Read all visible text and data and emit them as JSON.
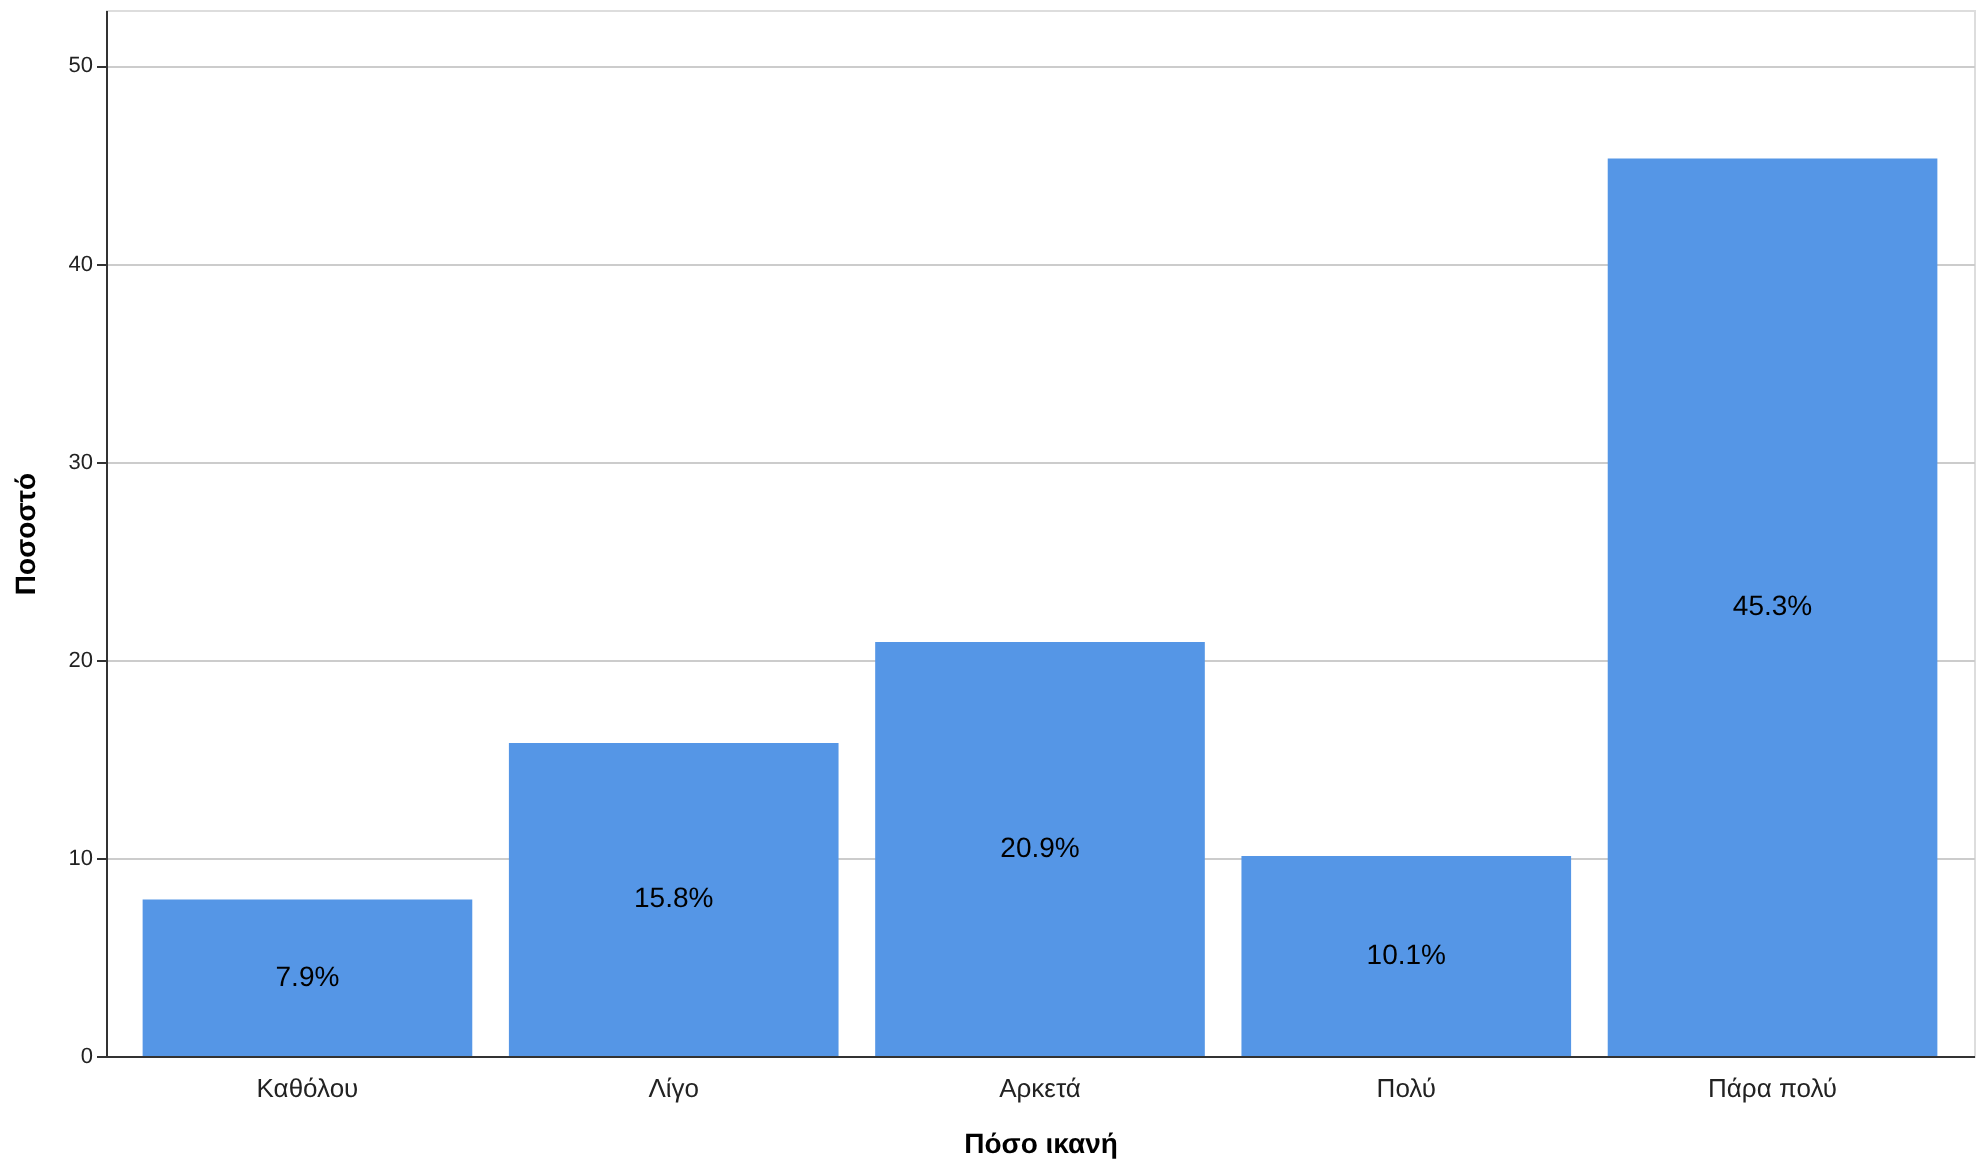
{
  "chart_data": {
    "type": "bar",
    "xlabel": "Πόσο ικανή",
    "ylabel": "Ποσοστό",
    "categories": [
      "Καθόλου",
      "Λίγο",
      "Αρκετά",
      "Πολύ",
      "Πάρα πολύ"
    ],
    "values": [
      7.9,
      15.8,
      20.9,
      10.1,
      45.3
    ],
    "value_labels": [
      "7.9%",
      "15.8%",
      "20.9%",
      "10.1%",
      "45.3%"
    ],
    "color": "#5596e6",
    "ylim": [
      0,
      52.8
    ],
    "yticks": [
      0,
      10,
      20,
      30,
      40,
      50
    ],
    "grid": "y"
  }
}
